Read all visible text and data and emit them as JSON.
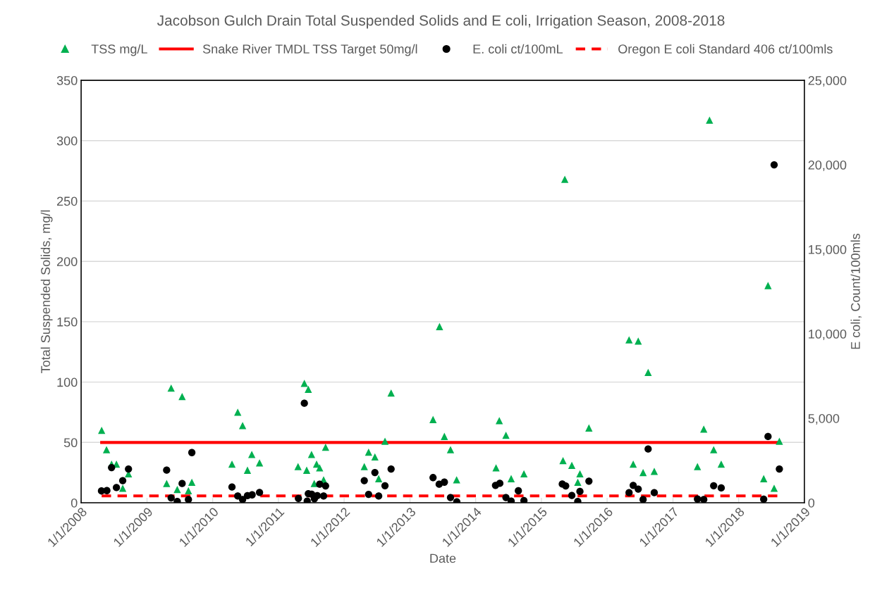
{
  "chart_data": {
    "type": "scatter",
    "title": "Jacobson Gulch Drain Total Suspended Solids and E coli, Irrigation Season, 2008-2018",
    "xlabel": "Date",
    "ylabel": "Total Suspended Solids, mg/l",
    "y2label": "E coli, Count/100mls",
    "xlim": [
      "2008-01-01",
      "2019-01-01"
    ],
    "xticks": [
      {
        "value": "2008-01-01",
        "label": "1/1/2008"
      },
      {
        "value": "2009-01-01",
        "label": "1/1/2009"
      },
      {
        "value": "2010-01-01",
        "label": "1/1/2010"
      },
      {
        "value": "2011-01-01",
        "label": "1/1/2011"
      },
      {
        "value": "2012-01-01",
        "label": "1/1/2012"
      },
      {
        "value": "2013-01-01",
        "label": "1/1/2013"
      },
      {
        "value": "2014-01-01",
        "label": "1/1/2014"
      },
      {
        "value": "2015-01-01",
        "label": "1/1/2015"
      },
      {
        "value": "2016-01-01",
        "label": "1/1/2016"
      },
      {
        "value": "2017-01-01",
        "label": "1/1/2017"
      },
      {
        "value": "2018-01-01",
        "label": "1/1/2018"
      },
      {
        "value": "2019-01-01",
        "label": "1/1/2019"
      }
    ],
    "ylim": [
      0,
      350
    ],
    "yticks": [
      0,
      50,
      100,
      150,
      200,
      250,
      300,
      350
    ],
    "y2lim": [
      0,
      25000
    ],
    "y2ticks": [
      {
        "value": 0,
        "label": "0"
      },
      {
        "value": 5000,
        "label": "5,000"
      },
      {
        "value": 10000,
        "label": "10,000"
      },
      {
        "value": 15000,
        "label": "15,000"
      },
      {
        "value": 20000,
        "label": "20,000"
      },
      {
        "value": 25000,
        "label": "25,000"
      }
    ],
    "grid": "y",
    "legend": "top",
    "series": [
      {
        "name": "TSS mg/L",
        "marker": "triangle",
        "color": "#00b050",
        "x": [
          "2008-04-24",
          "2008-05-21",
          "2008-06-18",
          "2008-07-15",
          "2008-08-19",
          "2008-09-20",
          "2009-04-20",
          "2009-05-15",
          "2009-06-18",
          "2009-07-15",
          "2009-08-19",
          "2009-09-07",
          "2010-04-18",
          "2010-05-20",
          "2010-06-16",
          "2010-07-13",
          "2010-08-06",
          "2010-09-18",
          "2011-04-20",
          "2011-05-25",
          "2011-06-07",
          "2011-06-16",
          "2011-07-04",
          "2011-07-19",
          "2011-08-01",
          "2011-08-18",
          "2011-09-09",
          "2011-09-20",
          "2012-04-22",
          "2012-05-16",
          "2012-06-20",
          "2012-07-11",
          "2012-08-15",
          "2012-09-18",
          "2013-05-09",
          "2013-06-14",
          "2013-07-11",
          "2013-08-14",
          "2013-09-17",
          "2014-04-24",
          "2014-05-12",
          "2014-06-18",
          "2014-07-17",
          "2014-09-26",
          "2015-05-01",
          "2015-05-11",
          "2015-06-19",
          "2015-07-22",
          "2015-08-03",
          "2015-09-22",
          "2016-05-02",
          "2016-05-25",
          "2016-06-22",
          "2016-07-19",
          "2016-08-16",
          "2016-09-19",
          "2017-05-17",
          "2017-06-21",
          "2017-07-23",
          "2017-08-15",
          "2017-09-26",
          "2018-05-20",
          "2018-06-13",
          "2018-07-17",
          "2018-08-15"
        ],
        "values": [
          60,
          44,
          32,
          32,
          12,
          24,
          16,
          95,
          11,
          88,
          10,
          17,
          32,
          75,
          64,
          27,
          40,
          33,
          30,
          99,
          27,
          94,
          40,
          16,
          32,
          29,
          19,
          46,
          30,
          42,
          38,
          20,
          51,
          91,
          69,
          146,
          55,
          44,
          19,
          29,
          68,
          56,
          20,
          24,
          35,
          268,
          31,
          17,
          24,
          62,
          135,
          32,
          134,
          25,
          108,
          26,
          30,
          61,
          317,
          44,
          32,
          20,
          180,
          12,
          51
        ]
      },
      {
        "name": "Snake River TMDL TSS Target 50mg/l",
        "type": "line",
        "line_style": "solid",
        "color": "#ff0000",
        "x": [
          "2008-04-24",
          "2018-08-15"
        ],
        "values": [
          50,
          50
        ]
      },
      {
        "name": "E. coli ct/100mL",
        "marker": "circle",
        "color": "#000000",
        "axis": "y2",
        "x": [
          "2008-04-23",
          "2008-05-23",
          "2008-06-18",
          "2008-07-15",
          "2008-08-19",
          "2008-09-20",
          "2009-04-20",
          "2009-05-15",
          "2009-06-18",
          "2009-07-15",
          "2009-08-19",
          "2009-09-07",
          "2010-04-18",
          "2010-05-20",
          "2010-06-16",
          "2010-07-13",
          "2010-08-08",
          "2010-09-18",
          "2011-04-22",
          "2011-05-25",
          "2011-06-10",
          "2011-06-16",
          "2011-07-05",
          "2011-07-20",
          "2011-08-05",
          "2011-08-18",
          "2011-09-09",
          "2011-09-20",
          "2012-04-22",
          "2012-05-16",
          "2012-06-20",
          "2012-07-11",
          "2012-08-15",
          "2012-09-18",
          "2013-05-09",
          "2013-06-12",
          "2013-07-11",
          "2013-08-14",
          "2013-09-18",
          "2014-04-21",
          "2014-05-15",
          "2014-06-18",
          "2014-07-17",
          "2014-08-26",
          "2014-09-26",
          "2015-04-27",
          "2015-05-16",
          "2015-06-19",
          "2015-07-22",
          "2015-08-03",
          "2015-09-22",
          "2016-05-02",
          "2016-05-25",
          "2016-06-22",
          "2016-07-19",
          "2016-08-16",
          "2016-09-19",
          "2017-05-17",
          "2017-06-21",
          "2017-08-15",
          "2017-09-26",
          "2018-05-20",
          "2018-06-13",
          "2018-07-17",
          "2018-08-15"
        ],
        "values": [
          700,
          720,
          2080,
          900,
          1310,
          2000,
          1930,
          290,
          80,
          1140,
          190,
          2970,
          930,
          400,
          190,
          420,
          470,
          610,
          260,
          5890,
          100,
          540,
          510,
          240,
          420,
          1100,
          400,
          1000,
          1310,
          500,
          1790,
          400,
          1010,
          2000,
          1490,
          1100,
          1220,
          310,
          60,
          1030,
          1150,
          310,
          100,
          710,
          130,
          1110,
          1000,
          430,
          80,
          670,
          1280,
          600,
          1030,
          810,
          190,
          3180,
          600,
          220,
          190,
          1010,
          880,
          210,
          3920,
          20000,
          2000
        ]
      },
      {
        "name": "Oregon E coli Standard 406 ct/100mls",
        "type": "line",
        "line_style": "dashed",
        "color": "#ff0000",
        "axis": "y2",
        "x": [
          "2008-04-24",
          "2018-08-15"
        ],
        "values": [
          406,
          406
        ]
      }
    ]
  }
}
